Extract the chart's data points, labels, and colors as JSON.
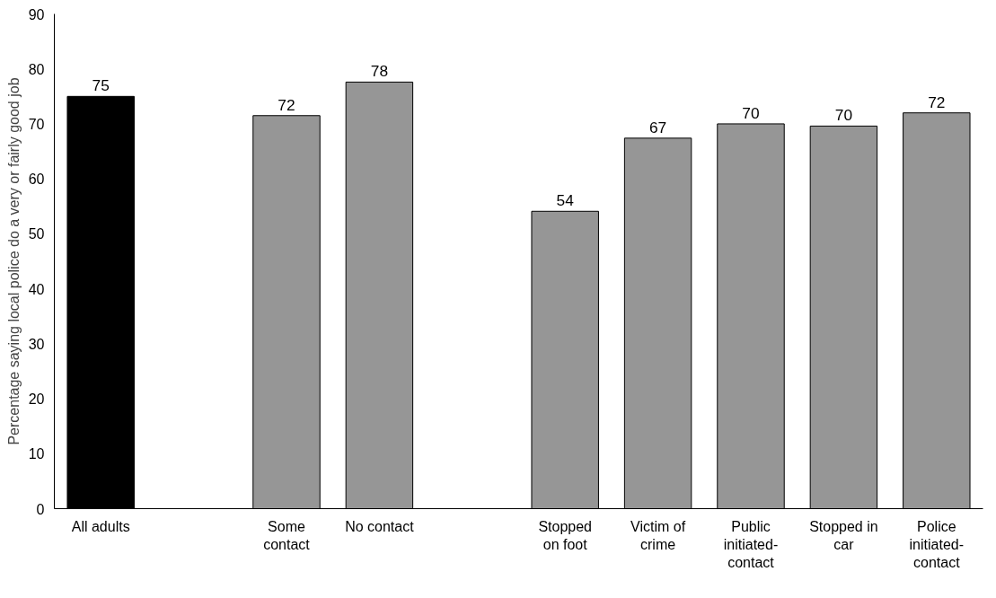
{
  "chart_data": {
    "type": "bar",
    "ylabel": "Percentage saying local police do a very or fairly good job",
    "categories": [
      "All adults",
      null,
      "Some\ncontact",
      "No contact",
      null,
      "Stopped\non foot",
      "Victim of\ncrime",
      "Public\ninitiated-\ncontact",
      "Stopped in\ncar",
      "Police\ninitiated-\ncontact"
    ],
    "values": [
      75,
      null,
      71.5,
      77.6,
      null,
      54.1,
      67.4,
      70.0,
      69.6,
      72.0
    ],
    "value_labels": [
      "75",
      null,
      "72",
      "78",
      null,
      "54",
      "67",
      "70",
      "70",
      "72"
    ],
    "colors": [
      "#000000",
      null,
      "#969696",
      "#969696",
      null,
      "#969696",
      "#969696",
      "#969696",
      "#969696",
      "#969696"
    ],
    "ylim": [
      0,
      90
    ],
    "yticks": [
      0,
      10,
      20,
      30,
      40,
      50,
      60,
      70,
      80,
      90
    ],
    "grid": false
  }
}
